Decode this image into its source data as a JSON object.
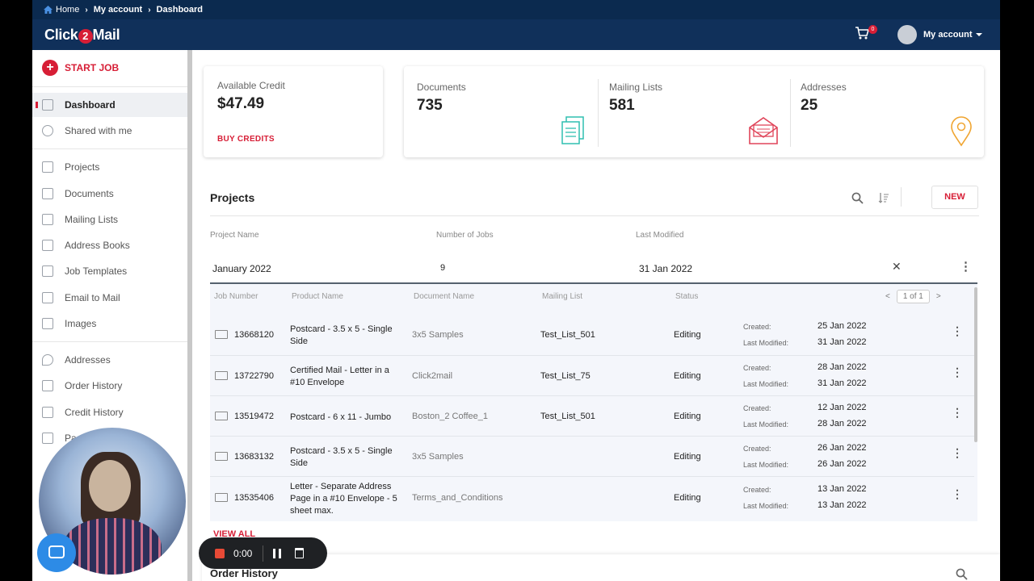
{
  "breadcrumb": {
    "home": "Home",
    "account": "My account",
    "current": "Dashboard"
  },
  "header": {
    "logo_text": "Click",
    "logo_two": "2",
    "logo_text2": "Mail",
    "cart_count": "0",
    "account_label": "My account"
  },
  "sidebar": {
    "start_job": "START JOB",
    "items": [
      {
        "label": "Dashboard",
        "icon": "dashboard-icon"
      },
      {
        "label": "Shared with me",
        "icon": "share-icon"
      },
      {
        "label": "Projects",
        "icon": "briefcase-icon"
      },
      {
        "label": "Documents",
        "icon": "documents-icon"
      },
      {
        "label": "Mailing Lists",
        "icon": "mailing-list-icon"
      },
      {
        "label": "Address Books",
        "icon": "address-book-icon"
      },
      {
        "label": "Job Templates",
        "icon": "template-icon"
      },
      {
        "label": "Email to Mail",
        "icon": "email-icon"
      },
      {
        "label": "Images",
        "icon": "image-icon"
      },
      {
        "label": "Addresses",
        "icon": "location-pin-icon"
      },
      {
        "label": "Order History",
        "icon": "order-icon"
      },
      {
        "label": "Credit History",
        "icon": "credit-card-icon"
      },
      {
        "label": "Pa",
        "icon": "payment-icon"
      }
    ]
  },
  "stats": {
    "credit_label": "Available Credit",
    "credit_value": "$47.49",
    "buy_credits": "BUY CREDITS",
    "documents_label": "Documents",
    "documents_value": "735",
    "mailing_lists_label": "Mailing Lists",
    "mailing_lists_value": "581",
    "addresses_label": "Addresses",
    "addresses_value": "25"
  },
  "projects": {
    "title": "Projects",
    "new_button": "NEW",
    "columns": [
      "Project Name",
      "Number of Jobs",
      "Last Modified"
    ],
    "row": {
      "name": "January 2022",
      "jobs": "9",
      "modified": "31 Jan 2022"
    },
    "job_columns": [
      "Job Number",
      "Product Name",
      "Document Name",
      "Mailing List",
      "Status"
    ],
    "pager": "1 of 1",
    "created_label": "Created:",
    "modified_label": "Last Modified:",
    "jobs": [
      {
        "number": "13668120",
        "product": "Postcard - 3.5 x 5 - Single Side",
        "document": "3x5 Samples",
        "list": "Test_List_501",
        "status": "Editing",
        "created": "25 Jan 2022",
        "modified": "31 Jan 2022"
      },
      {
        "number": "13722790",
        "product": "Certified Mail - Letter in a #10 Envelope",
        "document": "Click2mail",
        "list": "Test_List_75",
        "status": "Editing",
        "created": "28 Jan 2022",
        "modified": "31 Jan 2022"
      },
      {
        "number": "13519472",
        "product": "Postcard - 6 x 11 - Jumbo",
        "document": "Boston_2 Coffee_1",
        "list": "Test_List_501",
        "status": "Editing",
        "created": "12 Jan 2022",
        "modified": "28 Jan 2022"
      },
      {
        "number": "13683132",
        "product": "Postcard - 3.5 x 5 - Single Side",
        "document": "3x5 Samples",
        "list": "",
        "status": "Editing",
        "created": "26 Jan 2022",
        "modified": "26 Jan 2022"
      },
      {
        "number": "13535406",
        "product": "Letter - Separate Address Page in a #10 Envelope - 5 sheet max.",
        "document": "Terms_and_Conditions",
        "list": "",
        "status": "Editing",
        "created": "13 Jan 2022",
        "modified": "13 Jan 2022"
      }
    ],
    "view_all": "VIEW ALL"
  },
  "order_history": {
    "title": "Order History"
  },
  "recorder": {
    "time": "0:00"
  },
  "colors": {
    "brand_red": "#d71e36",
    "nav_blue": "#10305a"
  }
}
